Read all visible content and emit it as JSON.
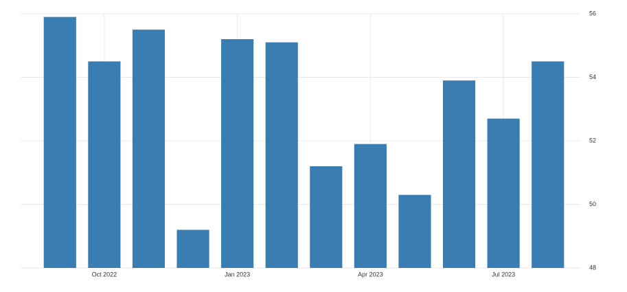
{
  "chart_data": {
    "type": "bar",
    "categories": [
      null,
      "Oct 2022",
      null,
      null,
      "Jan 2023",
      null,
      null,
      "Apr 2023",
      null,
      null,
      "Jul 2023",
      null
    ],
    "values": [
      55.9,
      54.5,
      55.5,
      49.2,
      55.2,
      55.1,
      51.2,
      51.9,
      50.3,
      53.9,
      52.7,
      54.5
    ],
    "color": "#3a7db3",
    "ylim": [
      48,
      56
    ],
    "yticks": [
      48,
      50,
      52,
      54,
      56
    ],
    "grid": true
  }
}
